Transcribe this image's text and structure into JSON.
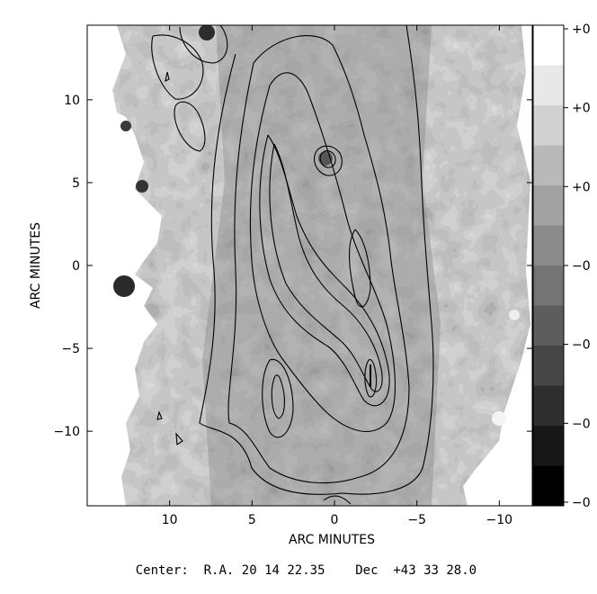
{
  "chart_data": {
    "type": "heatmap",
    "title": "",
    "xlabel": "ARC MINUTES",
    "ylabel": "ARC MINUTES",
    "x_ticks": [
      "10",
      "5",
      "0",
      "−5",
      "−10"
    ],
    "y_ticks": [
      "10",
      "5",
      "0",
      "−5",
      "−10"
    ],
    "xlim": [
      15,
      -12
    ],
    "ylim": [
      -14.5,
      14.5
    ],
    "grid": false,
    "contours": true,
    "colormap": "grayscale",
    "colorbar_ticks": [
      "+0",
      "+0",
      "+0",
      "−0",
      "−0",
      "−0",
      "−0"
    ],
    "colorbar_position": "right",
    "colors": {
      "high": "#ffffff",
      "low": "#000000",
      "contour": "#000000"
    }
  },
  "caption": {
    "center_label": "Center:",
    "ra_label": "R.A.",
    "ra_value": "20 14 22.35",
    "dec_label": "Dec",
    "dec_value": "+43 33 28.0"
  }
}
